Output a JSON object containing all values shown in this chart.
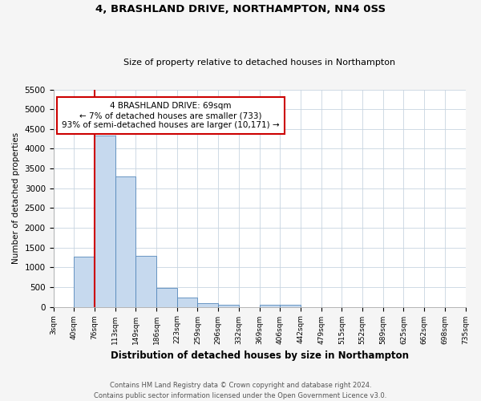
{
  "title1": "4, BRASHLAND DRIVE, NORTHAMPTON, NN4 0SS",
  "title2": "Size of property relative to detached houses in Northampton",
  "xlabel": "Distribution of detached houses by size in Northampton",
  "ylabel": "Number of detached properties",
  "bin_labels": [
    "3sqm",
    "40sqm",
    "76sqm",
    "113sqm",
    "149sqm",
    "186sqm",
    "223sqm",
    "259sqm",
    "296sqm",
    "332sqm",
    "369sqm",
    "406sqm",
    "442sqm",
    "479sqm",
    "515sqm",
    "552sqm",
    "589sqm",
    "625sqm",
    "662sqm",
    "698sqm",
    "735sqm"
  ],
  "bar_heights": [
    0,
    1270,
    4340,
    3290,
    1290,
    480,
    230,
    90,
    60,
    0,
    55,
    55,
    0,
    0,
    0,
    0,
    0,
    0,
    0,
    0
  ],
  "bar_color": "#c6d9ee",
  "bar_edge_color": "#5588bb",
  "red_line_bin": 2,
  "red_line_color": "#cc0000",
  "annotation_text": "4 BRASHLAND DRIVE: 69sqm\n← 7% of detached houses are smaller (733)\n93% of semi-detached houses are larger (10,171) →",
  "annotation_box_color": "#ffffff",
  "annotation_border_color": "#cc0000",
  "ylim": [
    0,
    5500
  ],
  "yticks": [
    0,
    500,
    1000,
    1500,
    2000,
    2500,
    3000,
    3500,
    4000,
    4500,
    5000,
    5500
  ],
  "footer_line1": "Contains HM Land Registry data © Crown copyright and database right 2024.",
  "footer_line2": "Contains public sector information licensed under the Open Government Licence v3.0.",
  "bg_color": "#f5f5f5",
  "plot_bg_color": "#ffffff",
  "grid_color": "#c8d4e0"
}
